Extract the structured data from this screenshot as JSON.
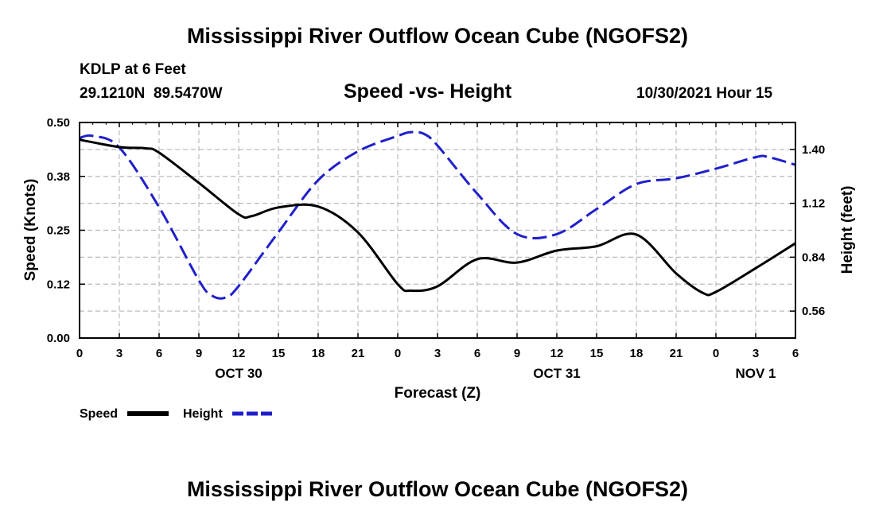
{
  "page": {
    "title": "Mississippi River Outflow Ocean Cube (NGOFS2)",
    "footer_title": "Mississippi River Outflow Ocean Cube (NGOFS2)",
    "station": "KDLP at 6 Feet",
    "coordinates": "29.1210N  89.5470W",
    "timestamp": "10/30/2021 Hour 15"
  },
  "chart_data": {
    "type": "line",
    "title": "Speed -vs- Height",
    "xlabel": "Forecast (Z)",
    "ylabel": "Speed (Knots)",
    "y2label": "Height (feet)",
    "x_range": [
      0,
      54
    ],
    "ylim": [
      0,
      0.5
    ],
    "y2lim": [
      0.42,
      1.54
    ],
    "x_ticks": [
      0,
      3,
      6,
      9,
      12,
      15,
      18,
      21,
      24,
      27,
      30,
      33,
      36,
      39,
      42,
      45,
      48,
      51,
      54
    ],
    "x_tick_labels": [
      "0",
      "3",
      "6",
      "9",
      "12",
      "15",
      "18",
      "21",
      "0",
      "3",
      "6",
      "9",
      "12",
      "15",
      "18",
      "21",
      "0",
      "3",
      "6"
    ],
    "date_labels": [
      {
        "x": 12,
        "label": "OCT 30"
      },
      {
        "x": 36,
        "label": "OCT 31"
      },
      {
        "x": 51,
        "label": "NOV 1"
      }
    ],
    "y_ticks": [
      0.0,
      0.125,
      0.25,
      0.375,
      0.5
    ],
    "y_tick_labels": [
      "0.00",
      "0.12",
      "0.25",
      "0.38",
      "0.50"
    ],
    "y2_ticks": [
      0.56,
      0.84,
      1.12,
      1.4
    ],
    "y2_tick_labels": [
      "0.56",
      "0.84",
      "1.12",
      "1.40"
    ],
    "grid": true,
    "legend_position": "bottom-left",
    "color_speed": "#000000",
    "color_height": "#1f1fcc",
    "series": [
      {
        "name": "Speed",
        "axis": "left",
        "x": [
          0,
          3,
          5,
          6,
          9,
          12,
          13,
          15,
          18,
          21,
          24,
          25,
          27,
          30,
          33,
          36,
          39,
          42,
          45,
          47,
          48,
          51,
          54
        ],
        "values": [
          0.46,
          0.443,
          0.44,
          0.43,
          0.36,
          0.287,
          0.283,
          0.303,
          0.305,
          0.245,
          0.125,
          0.11,
          0.12,
          0.183,
          0.175,
          0.203,
          0.213,
          0.24,
          0.15,
          0.105,
          0.107,
          0.162,
          0.22
        ]
      },
      {
        "name": "Height",
        "axis": "right",
        "x": [
          0,
          1,
          3,
          6,
          9,
          10,
          11,
          12,
          15,
          18,
          21,
          24,
          25,
          26,
          27,
          30,
          33,
          36,
          39,
          42,
          45,
          48,
          51,
          52,
          54
        ],
        "values": [
          1.46,
          1.47,
          1.41,
          1.1,
          0.72,
          0.64,
          0.63,
          0.69,
          0.97,
          1.24,
          1.39,
          1.47,
          1.49,
          1.48,
          1.42,
          1.17,
          0.96,
          0.96,
          1.09,
          1.22,
          1.25,
          1.3,
          1.36,
          1.36,
          1.32
        ]
      }
    ]
  }
}
